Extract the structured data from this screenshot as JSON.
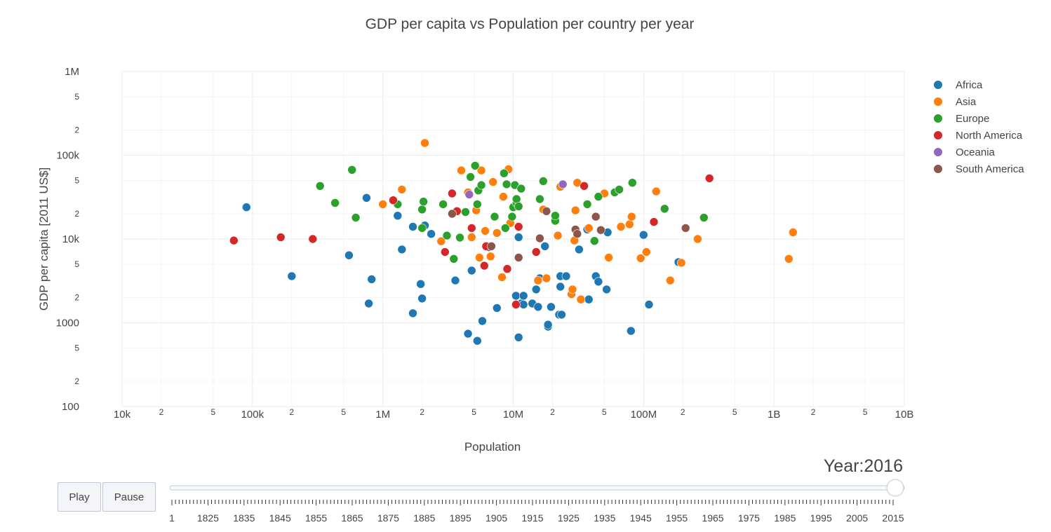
{
  "chart_data": {
    "type": "scatter",
    "title": "GDP per capita vs Population per country per year",
    "xlabel": "Population",
    "ylabel": "GDP per capita [2011 US$]",
    "x_scale": "log",
    "y_scale": "log",
    "xlim": [
      10000,
      10000000000
    ],
    "ylim": [
      100,
      1000000
    ],
    "x_major_ticks": [
      {
        "value": 10000,
        "label": "10k"
      },
      {
        "value": 100000,
        "label": "100k"
      },
      {
        "value": 1000000,
        "label": "1M"
      },
      {
        "value": 10000000,
        "label": "10M"
      },
      {
        "value": 100000000,
        "label": "100M"
      },
      {
        "value": 1000000000,
        "label": "1B"
      },
      {
        "value": 10000000000,
        "label": "10B"
      }
    ],
    "y_major_ticks": [
      {
        "value": 100,
        "label": "100"
      },
      {
        "value": 1000,
        "label": "1000"
      },
      {
        "value": 10000,
        "label": "10k"
      },
      {
        "value": 100000,
        "label": "100k"
      },
      {
        "value": 1000000,
        "label": "1M"
      }
    ],
    "minor_tick_labels": [
      "2",
      "5"
    ],
    "grid": true,
    "legend": "top-right",
    "series": [
      {
        "name": "Africa",
        "color": "#1f77b4",
        "points": [
          [
            90000,
            24000
          ],
          [
            200000,
            3600
          ],
          [
            550000,
            6400
          ],
          [
            750000,
            31000
          ],
          [
            780000,
            1700
          ],
          [
            820000,
            3300
          ],
          [
            1300000,
            19000
          ],
          [
            1400000,
            7500
          ],
          [
            1700000,
            14000
          ],
          [
            1700000,
            1300
          ],
          [
            1950000,
            2900
          ],
          [
            2000000,
            1950
          ],
          [
            2100000,
            14500
          ],
          [
            2350000,
            11500
          ],
          [
            3600000,
            3200
          ],
          [
            4500000,
            740
          ],
          [
            4800000,
            4200
          ],
          [
            5300000,
            610
          ],
          [
            5800000,
            1050
          ],
          [
            6500000,
            8000
          ],
          [
            7500000,
            1500
          ],
          [
            10500000,
            2100
          ],
          [
            11000000,
            10500
          ],
          [
            11000000,
            670
          ],
          [
            11500000,
            1700
          ],
          [
            12000000,
            1650
          ],
          [
            12000000,
            2100
          ],
          [
            14000000,
            1700
          ],
          [
            15000000,
            2500
          ],
          [
            15500000,
            1550
          ],
          [
            16000000,
            3400
          ],
          [
            17500000,
            8200
          ],
          [
            18500000,
            900
          ],
          [
            18500000,
            950
          ],
          [
            19500000,
            1550
          ],
          [
            22500000,
            1250
          ],
          [
            23000000,
            2700
          ],
          [
            23000000,
            3600
          ],
          [
            23500000,
            1250
          ],
          [
            25500000,
            3600
          ],
          [
            32000000,
            7500
          ],
          [
            37000000,
            13000
          ],
          [
            38000000,
            1900
          ],
          [
            43000000,
            3600
          ],
          [
            45000000,
            3100
          ],
          [
            52000000,
            2500
          ],
          [
            53000000,
            12000
          ],
          [
            80000000,
            800
          ],
          [
            100000000,
            11200
          ],
          [
            110000000,
            1650
          ],
          [
            185000000,
            5300
          ]
        ]
      },
      {
        "name": "Asia",
        "color": "#ff7f0e",
        "points": [
          [
            1000000,
            26000
          ],
          [
            1400000,
            39000
          ],
          [
            2100000,
            140000
          ],
          [
            2800000,
            9400
          ],
          [
            4000000,
            66000
          ],
          [
            4500000,
            36000
          ],
          [
            4800000,
            10500
          ],
          [
            5200000,
            22000
          ],
          [
            5500000,
            6000
          ],
          [
            5700000,
            66000
          ],
          [
            6100000,
            12500
          ],
          [
            6700000,
            6200
          ],
          [
            7000000,
            48000
          ],
          [
            7500000,
            11800
          ],
          [
            8200000,
            3500
          ],
          [
            8400000,
            32000
          ],
          [
            9200000,
            68000
          ],
          [
            9500000,
            15500
          ],
          [
            15500000,
            3200
          ],
          [
            17000000,
            22500
          ],
          [
            18000000,
            3400
          ],
          [
            22000000,
            11000
          ],
          [
            23000000,
            42000
          ],
          [
            28000000,
            2200
          ],
          [
            28500000,
            2500
          ],
          [
            29500000,
            9600
          ],
          [
            30000000,
            22000
          ],
          [
            31000000,
            47000
          ],
          [
            33000000,
            1900
          ],
          [
            38000000,
            13500
          ],
          [
            50000000,
            35000
          ],
          [
            54000000,
            6000
          ],
          [
            67000000,
            14000
          ],
          [
            78000000,
            15000
          ],
          [
            81000000,
            18500
          ],
          [
            95000000,
            5900
          ],
          [
            105000000,
            7000
          ],
          [
            125000000,
            37000
          ],
          [
            160000000,
            3200
          ],
          [
            195000000,
            5200
          ],
          [
            260000000,
            10000
          ],
          [
            1300000000,
            5800
          ],
          [
            1400000000,
            12000
          ]
        ]
      },
      {
        "name": "Europe",
        "color": "#2ca02c",
        "points": [
          [
            330000,
            43000
          ],
          [
            430000,
            27000
          ],
          [
            580000,
            67000
          ],
          [
            620000,
            18000
          ],
          [
            1300000,
            26000
          ],
          [
            2000000,
            13500
          ],
          [
            2000000,
            22500
          ],
          [
            2050000,
            28000
          ],
          [
            2900000,
            26000
          ],
          [
            3100000,
            11000
          ],
          [
            3500000,
            5800
          ],
          [
            3900000,
            10400
          ],
          [
            4300000,
            21000
          ],
          [
            4700000,
            55000
          ],
          [
            5100000,
            75000
          ],
          [
            5300000,
            26000
          ],
          [
            5400000,
            38000
          ],
          [
            5700000,
            44000
          ],
          [
            7200000,
            18500
          ],
          [
            8500000,
            61000
          ],
          [
            8700000,
            13500
          ],
          [
            8900000,
            45000
          ],
          [
            9800000,
            18500
          ],
          [
            10000000,
            24000
          ],
          [
            10300000,
            44000
          ],
          [
            10600000,
            27000
          ],
          [
            10600000,
            30000
          ],
          [
            11000000,
            24500
          ],
          [
            11500000,
            40000
          ],
          [
            16000000,
            30000
          ],
          [
            17000000,
            49000
          ],
          [
            21000000,
            16500
          ],
          [
            21000000,
            19000
          ],
          [
            37000000,
            26000
          ],
          [
            42000000,
            9500
          ],
          [
            45000000,
            32000
          ],
          [
            60000000,
            36000
          ],
          [
            65000000,
            39000
          ],
          [
            82000000,
            47000
          ],
          [
            145000000,
            23000
          ],
          [
            290000000,
            18000
          ]
        ]
      },
      {
        "name": "North America",
        "color": "#d62728",
        "points": [
          [
            72000,
            9600
          ],
          [
            165000,
            10500
          ],
          [
            290000,
            10000
          ],
          [
            1200000,
            29000
          ],
          [
            3000000,
            7000
          ],
          [
            3400000,
            35000
          ],
          [
            3700000,
            21500
          ],
          [
            4800000,
            13500
          ],
          [
            6000000,
            4800
          ],
          [
            6200000,
            8200
          ],
          [
            9000000,
            4400
          ],
          [
            10500000,
            1650
          ],
          [
            11000000,
            14000
          ],
          [
            15000000,
            7000
          ],
          [
            35000000,
            43000
          ],
          [
            120000000,
            16000
          ],
          [
            320000000,
            53000
          ]
        ]
      },
      {
        "name": "Oceania",
        "color": "#9467bd",
        "points": [
          [
            4600000,
            34000
          ],
          [
            24000000,
            45000
          ]
        ]
      },
      {
        "name": "South America",
        "color": "#8c564b",
        "points": [
          [
            3400000,
            20000
          ],
          [
            6800000,
            8200
          ],
          [
            11000000,
            6000
          ],
          [
            16000000,
            10200
          ],
          [
            18000000,
            21500
          ],
          [
            30000000,
            13000
          ],
          [
            31000000,
            11500
          ],
          [
            43000000,
            18500
          ],
          [
            47000000,
            12800
          ],
          [
            210000000,
            13500
          ]
        ]
      }
    ]
  },
  "slider": {
    "current_prefix": "Year:",
    "current_value": "2016",
    "start": "1",
    "tick_labels": [
      "1",
      "1825",
      "1835",
      "1845",
      "1855",
      "1865",
      "1875",
      "1885",
      "1895",
      "1905",
      "1915",
      "1925",
      "1935",
      "1945",
      "1955",
      "1965",
      "1975",
      "1985",
      "1995",
      "2005",
      "2015"
    ],
    "position_fraction": 1.0,
    "play_label": "Play",
    "pause_label": "Pause"
  }
}
